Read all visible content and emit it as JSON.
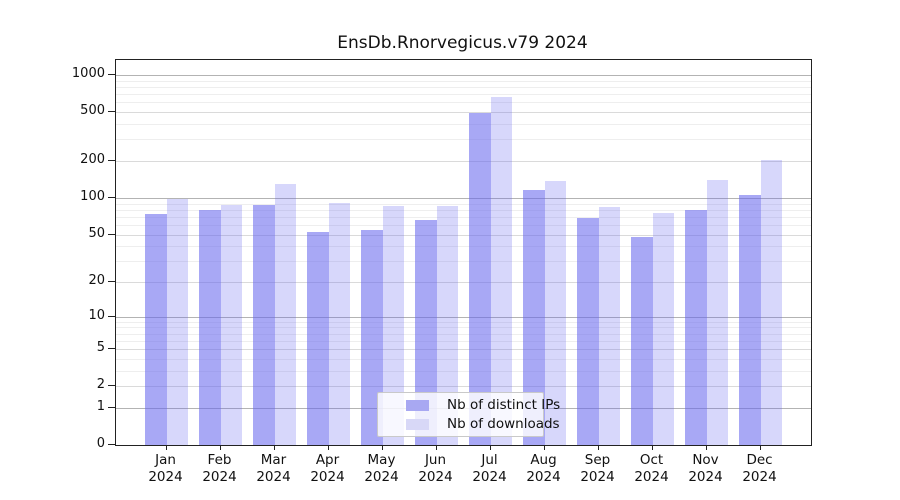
{
  "title": "EnsDb.Rnorvegicus.v79 2024",
  "chart_data": {
    "type": "bar",
    "title": "EnsDb.Rnorvegicus.v79 2024",
    "categories": [
      "Jan 2024",
      "Feb 2024",
      "Mar 2024",
      "Apr 2024",
      "May 2024",
      "Jun 2024",
      "Jul 2024",
      "Aug 2024",
      "Sep 2024",
      "Oct 2024",
      "Nov 2024",
      "Dec 2024"
    ],
    "series": [
      {
        "name": "Nb of distinct IPs",
        "color": "#a8a8f2",
        "color_rgba": "rgba(102,102,238,0.57)",
        "values": [
          74,
          79,
          87,
          52,
          54,
          66,
          490,
          116,
          68,
          48,
          79,
          105
        ]
      },
      {
        "name": "Nb of downloads",
        "color": "#d8d8f7",
        "color_rgba": "rgba(102,102,238,0.26)",
        "values": [
          98,
          88,
          130,
          91,
          86,
          86,
          663,
          137,
          84,
          75,
          140,
          204
        ]
      }
    ],
    "xlabel": "",
    "ylabel": "",
    "y_scale": "log1p",
    "ylim": [
      0,
      1325
    ],
    "y_ticks": [
      0,
      1,
      2,
      5,
      10,
      20,
      50,
      100,
      200,
      500,
      1000
    ],
    "grid": true,
    "grid_major_color": "#b3b3b3",
    "grid_labeled_color": "#dadada",
    "grid_minor_color": "#eeeeee",
    "legend_position": "inside-bottom-center",
    "legend_items": [
      "Nb of distinct IPs",
      "Nb of downloads"
    ]
  }
}
